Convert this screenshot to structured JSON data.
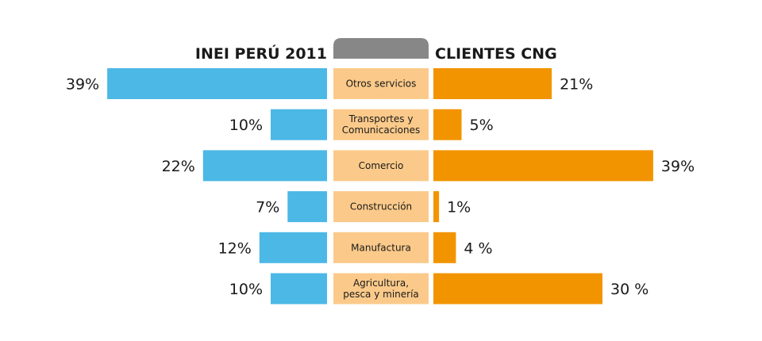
{
  "chart_data": {
    "type": "bar",
    "left_header": "INEI PERÚ 2011",
    "right_header": "CLIENTES CNG",
    "categories": [
      [
        "Otros servicios"
      ],
      [
        "Transportes y",
        "Comunicaciones"
      ],
      [
        "Comercio"
      ],
      [
        "Construcción"
      ],
      [
        "Manufactura"
      ],
      [
        "Agricultura,",
        "pesca y minería"
      ]
    ],
    "series": [
      {
        "values": [
          39,
          10,
          22,
          7,
          12,
          10
        ],
        "labels": [
          "39%",
          "10%",
          "22%",
          "7%",
          "12%",
          "10%"
        ]
      },
      {
        "values": [
          21,
          5,
          39,
          1,
          4,
          30
        ],
        "labels": [
          "21%",
          "5%",
          "39%",
          "1%",
          "4 %",
          "30 %"
        ]
      }
    ],
    "colors": {
      "left_bar": "#4cb8e6",
      "right_bar": "#f29400",
      "category_box": "#fbca8a",
      "header_tab": "#878787"
    }
  }
}
